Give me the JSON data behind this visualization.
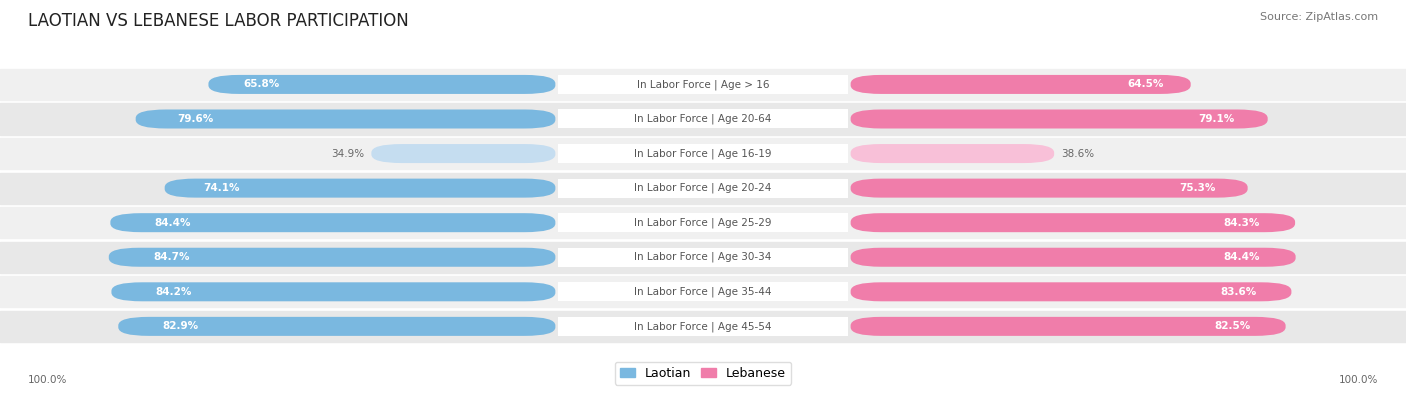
{
  "title": "LAOTIAN VS LEBANESE LABOR PARTICIPATION",
  "source": "Source: ZipAtlas.com",
  "categories": [
    "In Labor Force | Age > 16",
    "In Labor Force | Age 20-64",
    "In Labor Force | Age 16-19",
    "In Labor Force | Age 20-24",
    "In Labor Force | Age 25-29",
    "In Labor Force | Age 30-34",
    "In Labor Force | Age 35-44",
    "In Labor Force | Age 45-54"
  ],
  "laotian_values": [
    65.8,
    79.6,
    34.9,
    74.1,
    84.4,
    84.7,
    84.2,
    82.9
  ],
  "lebanese_values": [
    64.5,
    79.1,
    38.6,
    75.3,
    84.3,
    84.4,
    83.6,
    82.5
  ],
  "laotian_color": "#7ab8e0",
  "laotian_color_light": "#c5ddf0",
  "lebanese_color": "#f07daa",
  "lebanese_color_light": "#f8c0d8",
  "row_bg_colors": [
    "#f0f0f0",
    "#e8e8e8"
  ],
  "max_value": 100.0,
  "title_fontsize": 12,
  "label_fontsize": 7.5,
  "value_fontsize": 7.5,
  "legend_fontsize": 9,
  "source_fontsize": 8
}
